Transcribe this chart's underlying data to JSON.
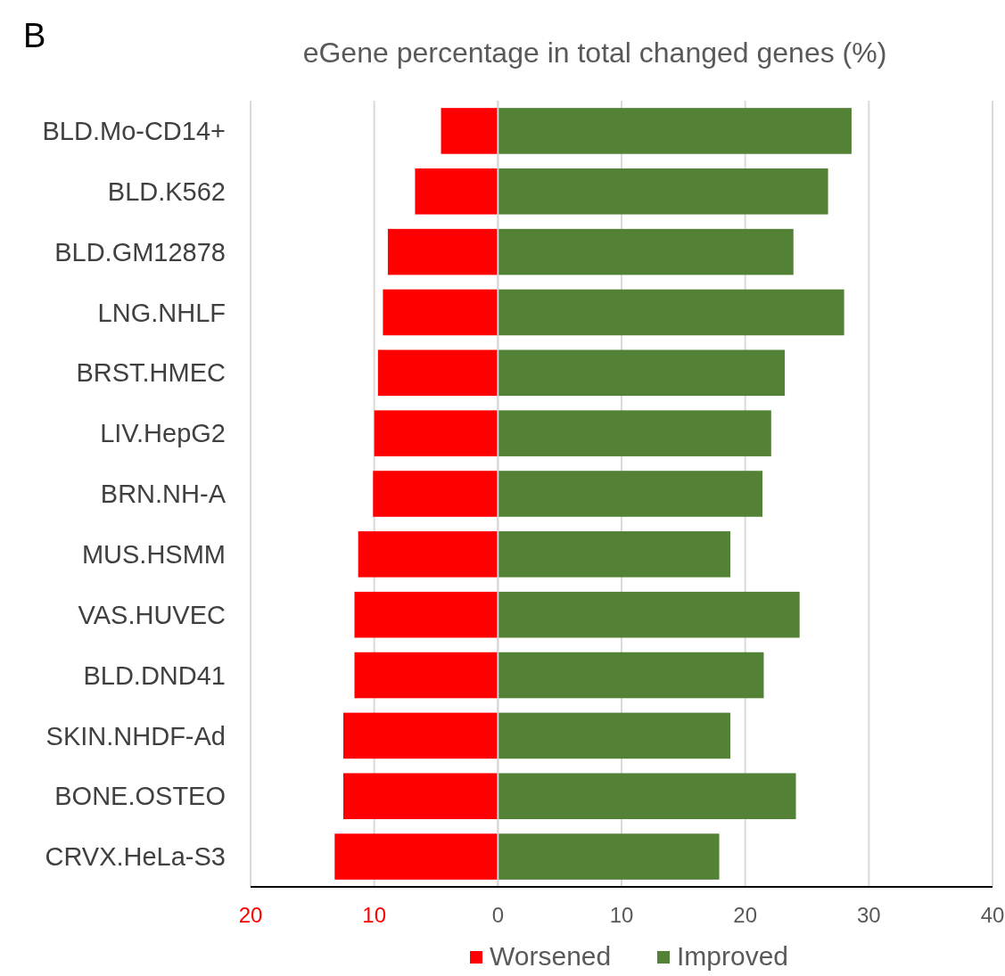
{
  "chart_data": {
    "type": "bar",
    "orientation": "horizontal",
    "stacked": true,
    "title": "eGene percentage in total changed genes (%)",
    "annotations": [
      "B"
    ],
    "categories": [
      "BLD.Mo-CD14+",
      "BLD.K562",
      "BLD.GM12878",
      "LNG.NHLF",
      "BRST.HMEC",
      "LIV.HepG2",
      "BRN.NH-A",
      "MUS.HSMM",
      "VAS.HUVEC",
      "BLD.DND41",
      "SKIN.NHDF-Ad",
      "BONE.OSTEO",
      "CRVX.HeLa-S3"
    ],
    "series": [
      {
        "name": "Worsened",
        "color": "#ff0000",
        "values": [
          -4.6,
          -6.7,
          -8.9,
          -9.3,
          -9.7,
          -10.0,
          -10.1,
          -11.3,
          -11.6,
          -11.6,
          -12.5,
          -12.5,
          -13.2
        ]
      },
      {
        "name": "Improved",
        "color": "#538135",
        "values": [
          28.6,
          26.7,
          23.9,
          28.0,
          23.2,
          22.1,
          21.4,
          18.8,
          24.4,
          21.5,
          18.8,
          24.1,
          17.9
        ]
      }
    ],
    "xlim": [
      -20,
      40
    ],
    "xticks": [
      {
        "value": -20,
        "label": "20"
      },
      {
        "value": -10,
        "label": "10"
      },
      0,
      10,
      20,
      30,
      40
    ],
    "grid": "x",
    "legend": "bottom"
  }
}
